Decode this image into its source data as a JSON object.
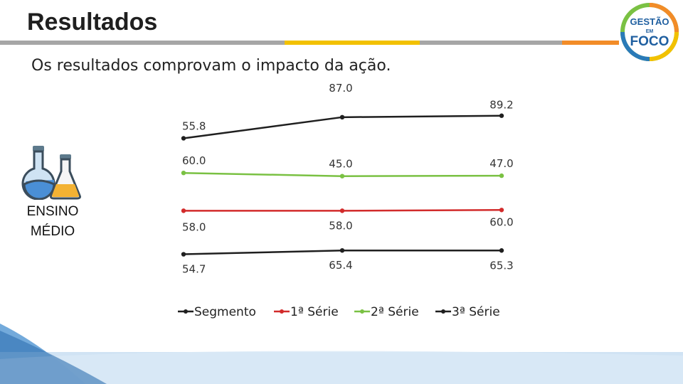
{
  "slide": {
    "title": "Resultados",
    "subtitle": "Os resultados comprovam o impacto da ação.",
    "side_label_line1": "ENSINO",
    "side_label_line2": "MÉDIO"
  },
  "logo": {
    "text_top": "GESTÃO",
    "text_mid": "EM",
    "text_bottom": "FOCO"
  },
  "colors": {
    "underline_gray": "#a6a6a6",
    "underline_yellow": "#f2c100",
    "underline_orange": "#f28c28",
    "segmento": "#1f1f1f",
    "serie1": "#d22b2b",
    "serie2": "#7ac143",
    "serie3": "#1f1f1f"
  },
  "chart_data": {
    "type": "line",
    "categories": [
      "",
      "",
      ""
    ],
    "series": [
      {
        "name": "Segmento",
        "values": [
          55.8,
          87.0,
          89.2
        ],
        "color": "#1f1f1f"
      },
      {
        "name": "1ª Série",
        "values": [
          58.0,
          58.0,
          60.0
        ],
        "color": "#d22b2b"
      },
      {
        "name": "2ª Série",
        "values": [
          60.0,
          45.0,
          47.0
        ],
        "color": "#7ac143"
      },
      {
        "name": "3ª Série",
        "values": [
          54.7,
          65.4,
          65.3
        ],
        "color": "#1f1f1f"
      }
    ],
    "legend": "bottom",
    "grid": false,
    "title": "",
    "xlabel": "",
    "ylabel": ""
  }
}
